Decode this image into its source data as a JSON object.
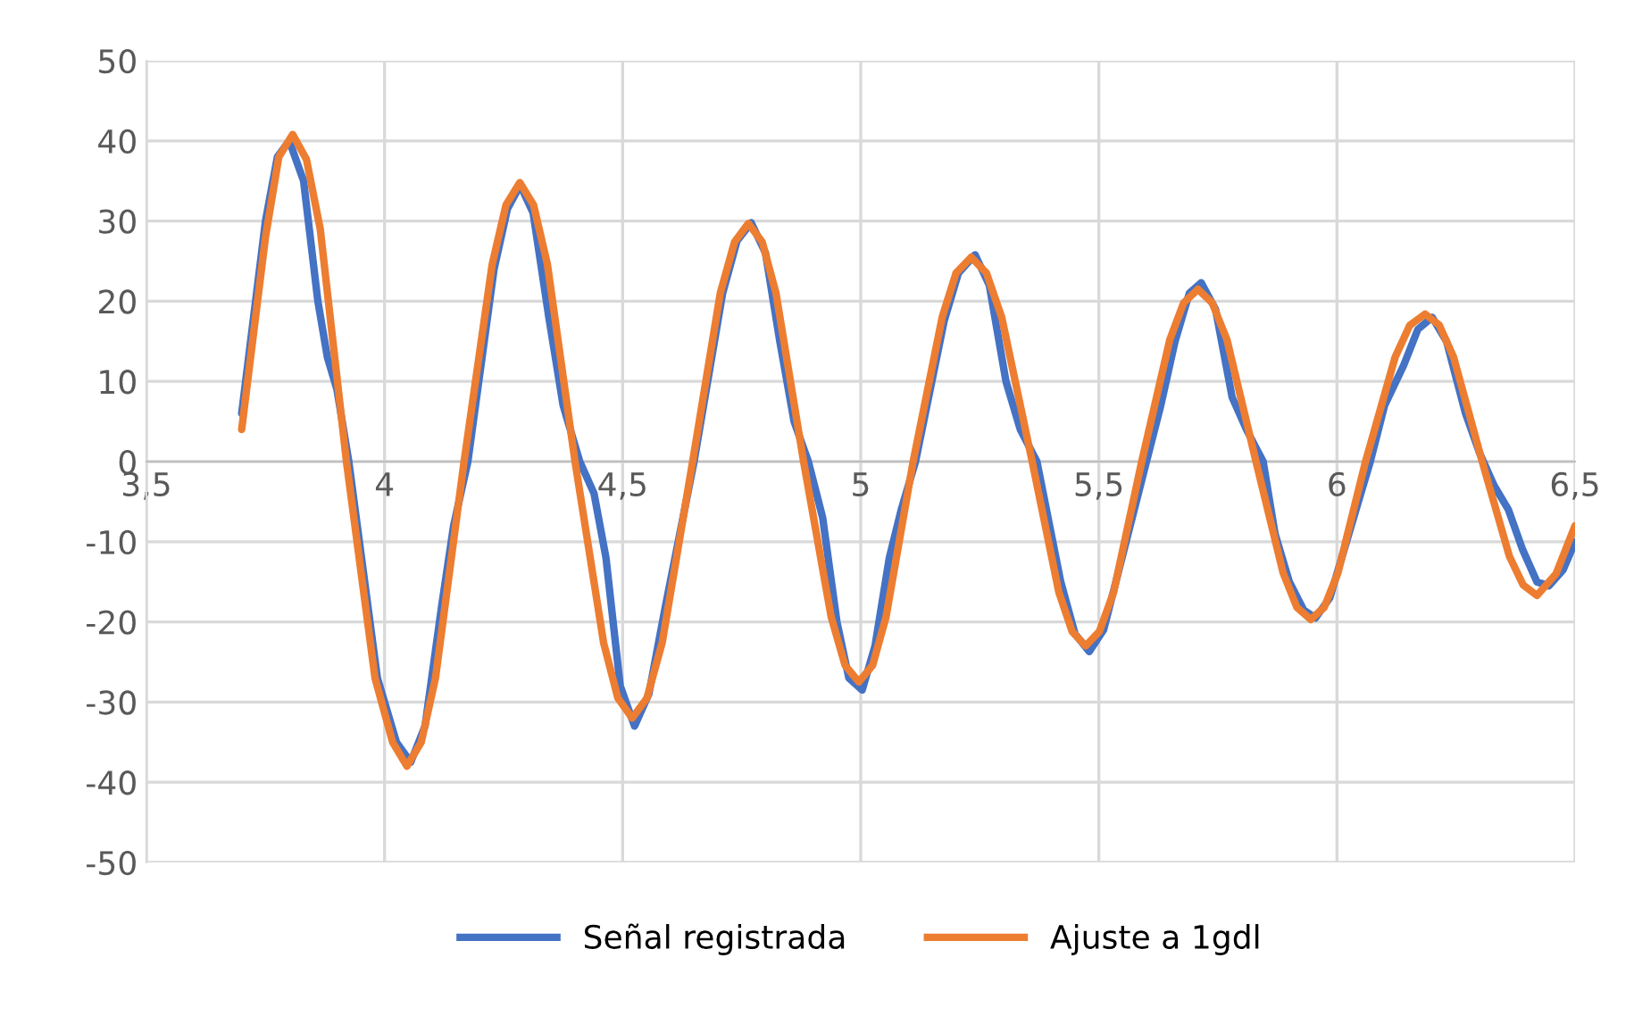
{
  "chart_data": {
    "type": "line",
    "xlim": [
      3.5,
      6.5
    ],
    "ylim": [
      -50,
      50
    ],
    "xticks": [
      {
        "value": 3.5,
        "label": "3,5"
      },
      4,
      {
        "value": 4.5,
        "label": "4,5"
      },
      5,
      {
        "value": 5.5,
        "label": "5,5"
      },
      6,
      {
        "value": 6.5,
        "label": "6,5"
      }
    ],
    "yticks": [
      -50,
      -40,
      -30,
      -20,
      -10,
      0,
      10,
      20,
      30,
      40,
      50
    ],
    "grid": true,
    "legend": "bottom",
    "marker": "none",
    "line_style": "solid",
    "series": [
      {
        "name": "Señal registrada",
        "color": "#4472c4",
        "x": [
          3.7,
          3.75,
          3.775,
          3.8,
          3.83,
          3.86,
          3.88,
          3.9,
          3.925,
          3.985,
          4.025,
          4.055,
          4.085,
          4.12,
          4.145,
          4.175,
          4.23,
          4.258,
          4.285,
          4.312,
          4.345,
          4.375,
          4.41,
          4.44,
          4.465,
          4.495,
          4.525,
          4.555,
          4.59,
          4.65,
          4.71,
          4.74,
          4.77,
          4.8,
          4.83,
          4.86,
          4.89,
          4.92,
          4.95,
          4.975,
          5.003,
          5.03,
          5.06,
          5.085,
          5.115,
          5.175,
          5.205,
          5.24,
          5.27,
          5.305,
          5.335,
          5.37,
          5.42,
          5.45,
          5.48,
          5.51,
          5.54,
          5.6,
          5.63,
          5.66,
          5.69,
          5.715,
          5.745,
          5.78,
          5.81,
          5.845,
          5.87,
          5.9,
          5.93,
          5.955,
          5.985,
          6.02,
          6.07,
          6.1,
          6.14,
          6.17,
          6.2,
          6.23,
          6.27,
          6.3,
          6.33,
          6.36,
          6.39,
          6.42,
          6.445,
          6.475,
          6.5
        ],
        "values": [
          6,
          30,
          38,
          40,
          35,
          20,
          13,
          9,
          0,
          -27,
          -35,
          -37.5,
          -33,
          -18,
          -8,
          0,
          24,
          31.5,
          34.5,
          31,
          18,
          7,
          0,
          -4,
          -12,
          -28,
          -33,
          -29,
          -18,
          0,
          21,
          27.5,
          29.8,
          26,
          15,
          5,
          0,
          -7,
          -20,
          -27,
          -28.5,
          -23,
          -12,
          -6,
          0,
          17.5,
          23.5,
          25.8,
          22,
          10,
          4,
          0,
          -15,
          -21.5,
          -23.7,
          -21,
          -14,
          0,
          7,
          15,
          21,
          22.3,
          19,
          8,
          4,
          0,
          -9,
          -15,
          -18.5,
          -19.5,
          -17,
          -10,
          0,
          7,
          12,
          16.5,
          18,
          15,
          6,
          1,
          -3,
          -6,
          -11,
          -15,
          -15.5,
          -13.5,
          -10
        ]
      },
      {
        "name": "Ajuste a 1gdl",
        "color": "#ed7d31",
        "x": [
          3.7,
          3.75,
          3.778,
          3.807,
          3.836,
          3.865,
          3.92,
          3.98,
          4.017,
          4.047,
          4.077,
          4.107,
          4.167,
          4.226,
          4.255,
          4.284,
          4.313,
          4.342,
          4.4,
          4.46,
          4.49,
          4.52,
          4.551,
          4.583,
          4.647,
          4.705,
          4.735,
          4.764,
          4.793,
          4.822,
          4.88,
          4.938,
          4.967,
          4.996,
          5.025,
          5.053,
          5.11,
          5.171,
          5.2,
          5.232,
          5.264,
          5.296,
          5.36,
          5.416,
          5.444,
          5.472,
          5.501,
          5.531,
          5.59,
          5.649,
          5.678,
          5.708,
          5.738,
          5.769,
          5.83,
          5.887,
          5.916,
          5.945,
          5.973,
          6.002,
          6.06,
          6.122,
          6.153,
          6.185,
          6.215,
          6.245,
          6.305,
          6.362,
          6.391,
          6.42,
          6.46,
          6.5
        ],
        "values": [
          4,
          28,
          38,
          40.8,
          37.7,
          29,
          0,
          -27,
          -35,
          -38,
          -35,
          -27,
          0,
          24.6,
          32,
          34.8,
          32,
          24.6,
          0,
          -22.6,
          -29.5,
          -32,
          -29.5,
          -22.6,
          0,
          21,
          27.4,
          29.7,
          27.4,
          21,
          0,
          -19.4,
          -25.4,
          -27.5,
          -25.4,
          -19.4,
          0,
          18,
          23.5,
          25.5,
          23.5,
          18,
          0,
          -16.3,
          -21.2,
          -23,
          -21.2,
          -16.3,
          0,
          15.2,
          19.8,
          21.5,
          19.8,
          15.2,
          0,
          -13.9,
          -18.2,
          -19.7,
          -18.2,
          -13.9,
          0,
          13,
          17,
          18.4,
          17,
          13,
          0,
          -11.8,
          -15.4,
          -16.7,
          -14,
          -8
        ]
      }
    ]
  }
}
